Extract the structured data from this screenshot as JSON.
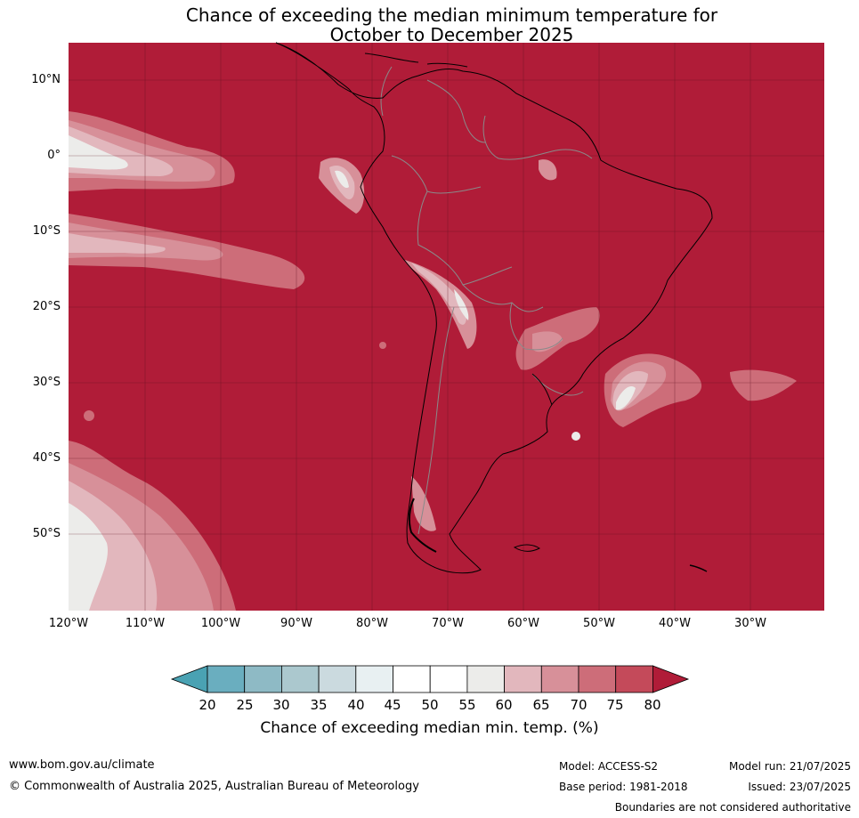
{
  "title": {
    "line1": "Chance of exceeding the median minimum temperature for",
    "line2": "October to December 2025"
  },
  "colors": {
    "ocean_land_high": "#b01c38",
    "c75_80": "#c44a5a",
    "c70_75": "#cd6d79",
    "c65_70": "#d79099",
    "c60_65": "#e2b7bd",
    "c55_60": "#ececea",
    "c50_55": "#ffffff",
    "c45_50": "#ffffff",
    "c40_45": "#e8f0f2",
    "c35_40": "#cbdadf",
    "c30_35": "#abc8ce",
    "c25_30": "#8ebac5",
    "c20_25": "#6aaebf",
    "c_below20": "#4aa2b3",
    "grid": "#5a0f1e",
    "country_border": "#8a8a8a",
    "coastline": "#000000"
  },
  "lat_labels": [
    "10°N",
    "0°",
    "10°S",
    "20°S",
    "30°S",
    "40°S",
    "50°S"
  ],
  "lon_labels": [
    "120°W",
    "110°W",
    "100°W",
    "90°W",
    "80°W",
    "70°W",
    "60°W",
    "50°W",
    "40°W",
    "30°W"
  ],
  "colorbar": {
    "ticks": [
      "20",
      "25",
      "30",
      "35",
      "40",
      "45",
      "50",
      "55",
      "60",
      "65",
      "70",
      "75",
      "80"
    ],
    "label": "Chance of exceeding median min. temp. (%)"
  },
  "footer": {
    "website": "www.bom.gov.au/climate",
    "copyright": "© Commonwealth of Australia 2025, Australian Bureau of Meteorology",
    "model": "Model: ACCESS-S2",
    "base_period": "Base period: 1981-2018",
    "model_run": "Model run: 21/07/2025",
    "issued": "Issued: 23/07/2025",
    "disclaimer": "Boundaries are not considered authoritative"
  }
}
